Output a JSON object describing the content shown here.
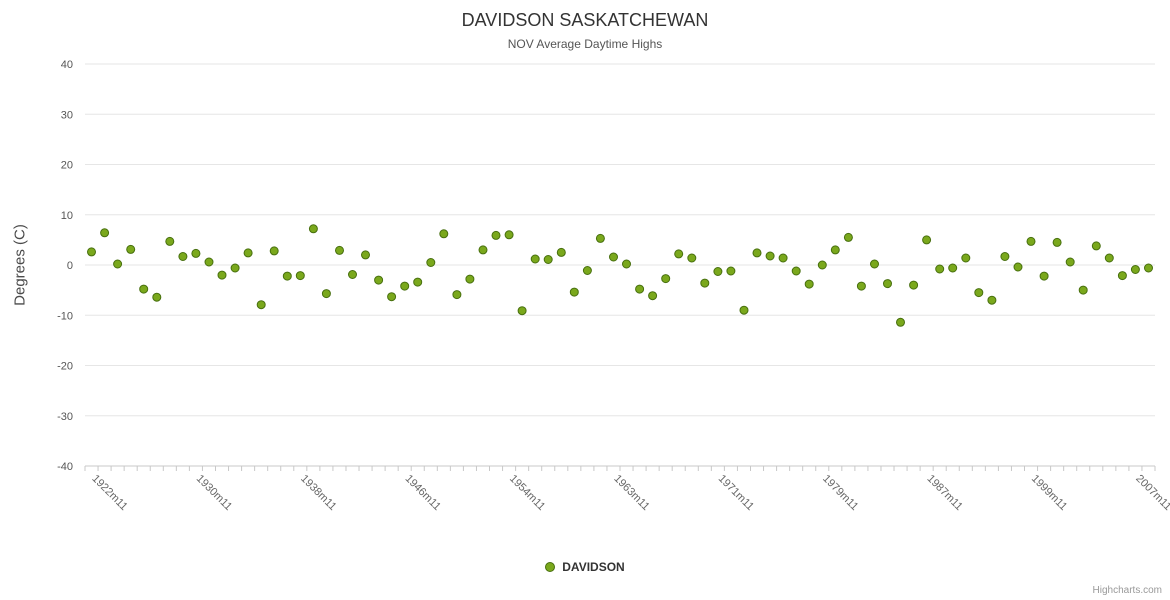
{
  "credits": "Highcharts.com",
  "chart_data": {
    "type": "scatter",
    "title": "DAVIDSON SASKATCHEWAN",
    "subtitle": "NOV Average Daytime Highs",
    "xlabel": "",
    "ylabel": "Degrees (C)",
    "ylim": [
      -40,
      40
    ],
    "ytick_step": 10,
    "grid": true,
    "legend_position": "bottom-center",
    "x_tick_labels": [
      "1922m11",
      "1930m11",
      "1938m11",
      "1946m11",
      "1954m11",
      "1963m11",
      "1971m11",
      "1979m11",
      "1987m11",
      "1999m11",
      "2007m11"
    ],
    "x_tick_indices": [
      0,
      8,
      16,
      24,
      32,
      40,
      48,
      56,
      64,
      72,
      80
    ],
    "categories": [
      "1922m11",
      "1923m11",
      "1924m11",
      "1925m11",
      "1926m11",
      "1927m11",
      "1928m11",
      "1929m11",
      "1930m11",
      "1931m11",
      "1932m11",
      "1933m11",
      "1934m11",
      "1935m11",
      "1936m11",
      "1937m11",
      "1938m11",
      "1939m11",
      "1940m11",
      "1941m11",
      "1942m11",
      "1943m11",
      "1944m11",
      "1945m11",
      "1946m11",
      "1947m11",
      "1948m11",
      "1949m11",
      "1950m11",
      "1951m11",
      "1952m11",
      "1953m11",
      "1954m11",
      "1955m11",
      "1956m11",
      "1958m11",
      "1959m11",
      "1960m11",
      "1961m11",
      "1962m11",
      "1963m11",
      "1964m11",
      "1965m11",
      "1966m11",
      "1967m11",
      "1968m11",
      "1969m11",
      "1970m11",
      "1971m11",
      "1972m11",
      "1973m11",
      "1974m11",
      "1975m11",
      "1976m11",
      "1977m11",
      "1978m11",
      "1979m11",
      "1980m11",
      "1981m11",
      "1982m11",
      "1983m11",
      "1984m11",
      "1985m11",
      "1986m11",
      "1987m11",
      "1988m11",
      "1989m11",
      "1990m11",
      "1992m11",
      "1994m11",
      "1996m11",
      "1998m11",
      "1999m11",
      "2000m11",
      "2001m11",
      "2002m11",
      "2003m11",
      "2004m11",
      "2005m11",
      "2006m11",
      "2007m11",
      "2008m11"
    ],
    "series": [
      {
        "name": "DAVIDSON",
        "values": [
          2.6,
          6.4,
          0.2,
          3.1,
          -4.8,
          -6.4,
          4.7,
          1.7,
          2.3,
          0.6,
          -2.0,
          -0.6,
          2.4,
          -7.9,
          2.8,
          -2.2,
          -2.1,
          7.2,
          -5.7,
          2.9,
          -1.9,
          2.0,
          -3.0,
          -6.3,
          -4.2,
          -3.4,
          0.5,
          6.2,
          -5.9,
          -2.8,
          3.0,
          5.9,
          6.0,
          -9.1,
          1.2,
          1.1,
          2.5,
          -5.4,
          -1.1,
          5.3,
          1.6,
          0.2,
          -4.8,
          -6.1,
          -2.7,
          2.2,
          1.4,
          -3.6,
          -1.3,
          -1.2,
          -9.0,
          2.4,
          1.8,
          1.4,
          -1.2,
          -3.8,
          0.0,
          3.0,
          5.5,
          -4.2,
          0.2,
          -3.7,
          -11.4,
          -4.0,
          5.0,
          -0.8,
          -0.6,
          1.4,
          -5.5,
          -7.0,
          1.7,
          -0.4,
          4.7,
          -2.2,
          4.5,
          0.6,
          -5.0,
          3.8,
          1.4,
          -2.1,
          -0.9,
          -0.6
        ]
      }
    ],
    "colors": {
      "point_fill": "#7aa81c",
      "point_stroke": "#476f0e",
      "grid": "#e6e6e6",
      "axis": "#c8c8c8",
      "tick_text": "#666666",
      "y_text": "#555555"
    }
  }
}
